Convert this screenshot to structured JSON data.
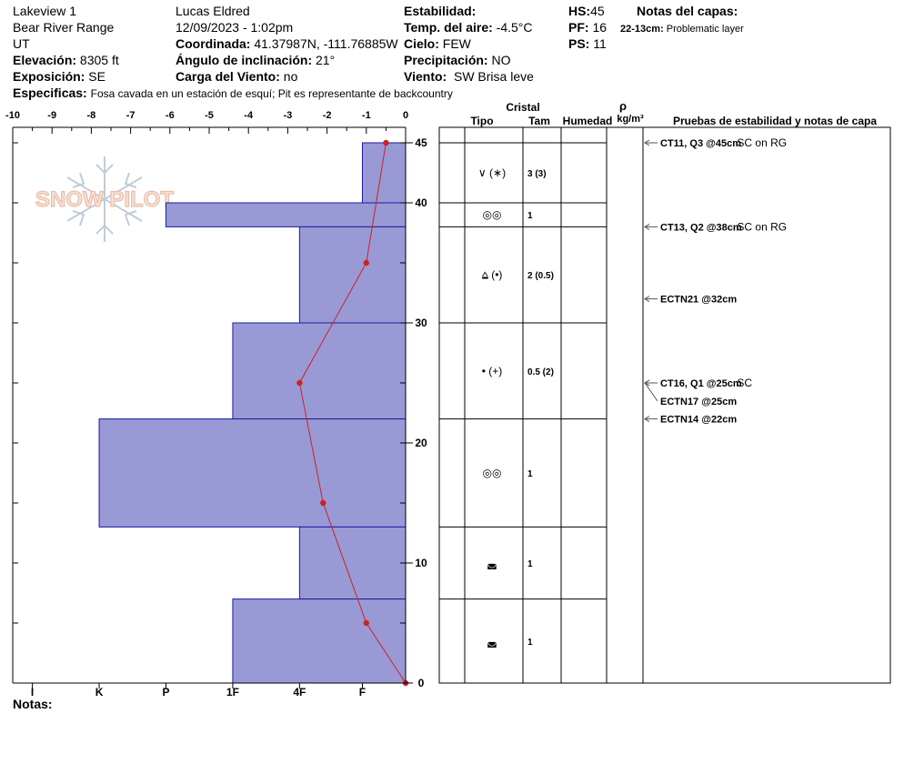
{
  "header": {
    "location": "Lakeview 1",
    "range": "Bear River Range",
    "state": "UT",
    "elevation_label": "Elevación:",
    "elevation_value": "8305 ft",
    "aspect_label": "Exposición:",
    "aspect_value": "SE",
    "specifics_label": "Especificas:",
    "specifics_value": "Fosa cavada en un estación de esquí; Pit es representante de backcountry",
    "observer": "Lucas Eldred",
    "datetime": "12/09/2023 - 1:02pm",
    "coord_label": "Coordinada:",
    "coord_value": "41.37987N, -111.76885W",
    "incline_label": "Ángulo de inclinación:",
    "incline_value": "21°",
    "wind_load_label": "Carga del Viento:",
    "wind_load_value": "no",
    "stability_label": "Estabilidad:",
    "air_temp_label": "Temp. del aire:",
    "air_temp_value": "-4.5°C",
    "sky_label": "Cielo:",
    "sky_value": "FEW",
    "precip_label": "Precipitación:",
    "precip_value": "NO",
    "wind_label": "Viento:",
    "wind_value": "SW Brisa leve",
    "hs_label": "HS:",
    "hs_value": "45",
    "pf_label": "PF:",
    "pf_value": "16",
    "ps_label": "PS:",
    "ps_value": "11",
    "layer_notes_title": "Notas del capas:",
    "layer_note_range": "22-13cm:",
    "layer_note_text": "Problematic layer"
  },
  "logo_text": "SNOW PILOT",
  "notes_label": "Notas:",
  "columns": {
    "crystal": "Cristal",
    "type": "Tipo",
    "size": "Tam",
    "moisture": "Humedad",
    "density_symbol": "ρ",
    "density_unit": "kg/m³",
    "tests": "Pruebas de estabilidad y notas de capa"
  },
  "colors": {
    "hardness_fill": "#9999d6",
    "hardness_stroke": "#1a1aa6",
    "temp_line": "#cc2222"
  },
  "chart_data": {
    "type": "snow_profile",
    "temperature_axis": {
      "ticks": [
        "-10",
        "-9",
        "-8",
        "-7",
        "-6",
        "-5",
        "-4",
        "-3",
        "-2",
        "-1",
        "0"
      ],
      "range": [
        -10,
        0
      ]
    },
    "depth_axis": {
      "ticks": [
        "0",
        "10",
        "20",
        "30",
        "40",
        "45"
      ],
      "range": [
        0,
        45
      ]
    },
    "hardness_axis": {
      "labels": [
        "I",
        "K",
        "P",
        "1F",
        "4F",
        "F"
      ],
      "positions": [
        -9.5,
        -7.8,
        -6.1,
        -4.4,
        -2.7,
        -1.1
      ]
    },
    "hardness_layers": [
      {
        "top": 45,
        "bottom": 40,
        "hardness": "F"
      },
      {
        "top": 40,
        "bottom": 38,
        "hardness": "P"
      },
      {
        "top": 38,
        "bottom": 30,
        "hardness": "4F"
      },
      {
        "top": 30,
        "bottom": 22,
        "hardness": "1F"
      },
      {
        "top": 22,
        "bottom": 13,
        "hardness": "K"
      },
      {
        "top": 13,
        "bottom": 7,
        "hardness": "4F"
      },
      {
        "top": 7,
        "bottom": 0,
        "hardness": "1F"
      }
    ],
    "hardness_values": [
      -1.1,
      -6.1,
      -2.7,
      -4.4,
      -7.8,
      -2.7,
      -4.4
    ],
    "temperature_profile": [
      {
        "depth": 45,
        "temp": -0.5
      },
      {
        "depth": 35,
        "temp": -1.0
      },
      {
        "depth": 25,
        "temp": -2.7
      },
      {
        "depth": 15,
        "temp": -2.1
      },
      {
        "depth": 5,
        "temp": -1.0
      },
      {
        "depth": 0,
        "temp": 0.0
      }
    ],
    "layer_rows": [
      {
        "top": 45,
        "bottom": 40,
        "crystal": "∨ (∗)",
        "size": "3 (3)"
      },
      {
        "top": 40,
        "bottom": 38,
        "crystal": "◎◎",
        "size": "1"
      },
      {
        "top": 38,
        "bottom": 30,
        "crystal": "⩠ (•)",
        "size": "2 (0.5)"
      },
      {
        "top": 30,
        "bottom": 22,
        "crystal": "• (+)",
        "size": "0.5 (2)"
      },
      {
        "top": 22,
        "bottom": 13,
        "crystal": "◎◎",
        "size": "1"
      },
      {
        "top": 13,
        "bottom": 7,
        "crystal": "◛",
        "size": "1"
      },
      {
        "top": 7,
        "bottom": 0,
        "crystal": "◛",
        "size": "1"
      }
    ],
    "stability_tests": [
      {
        "depth": 45,
        "label": "CT11, Q3 @45cm",
        "extra": "SC on RG"
      },
      {
        "depth": 38,
        "label": "CT13, Q2 @38cm",
        "extra": "SC on RG"
      },
      {
        "depth": 32,
        "label": "ECTN21 @32cm",
        "extra": ""
      },
      {
        "depth": 25,
        "label": "CT16, Q1 @25cm",
        "extra": "SC"
      },
      {
        "depth": 25,
        "label": "ECTN17 @25cm",
        "extra": ""
      },
      {
        "depth": 22,
        "label": "ECTN14 @22cm",
        "extra": ""
      }
    ]
  }
}
